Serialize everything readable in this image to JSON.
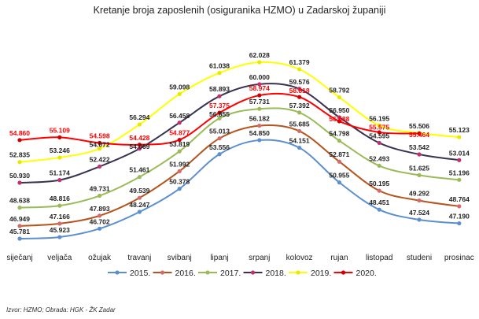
{
  "chart_data": {
    "type": "line",
    "title": "Kretanje broja zaposlenih (osiguranika HZMO) u Zadarskoj županiji",
    "categories": [
      "siječanj",
      "veljača",
      "ožujak",
      "travanj",
      "svibanj",
      "lipanj",
      "srpanj",
      "kolovoz",
      "rujan",
      "listopad",
      "studeni",
      "prosinac"
    ],
    "series": [
      {
        "name": "2015.",
        "color": "#5b8fcf",
        "marker": "#5b8fcf",
        "values": [
          45781,
          45923,
          46702,
          48247,
          50378,
          53556,
          54850,
          54151,
          50955,
          48451,
          47524,
          47190
        ]
      },
      {
        "name": "2016.",
        "color": "#b5541c",
        "marker": "#d46a6a",
        "values": [
          46949,
          47166,
          47893,
          49539,
          51992,
          55013,
          56182,
          55685,
          52871,
          50195,
          49292,
          48764
        ]
      },
      {
        "name": "2017.",
        "color": "#9bbb59",
        "marker": "#9bbb59",
        "values": [
          48638,
          48816,
          49731,
          51461,
          53819,
          56855,
          57731,
          57392,
          54798,
          52493,
          51625,
          51196
        ]
      },
      {
        "name": "2018.",
        "color": "#3b3152",
        "marker": "#c0306a",
        "values": [
          50930,
          51174,
          52422,
          54069,
          56458,
          58893,
          60000,
          59576,
          56950,
          54595,
          53542,
          53014
        ]
      },
      {
        "name": "2019.",
        "color": "#ffff00",
        "marker": "#e8e800",
        "values": [
          52835,
          53246,
          54072,
          56294,
          59098,
          61038,
          62028,
          61379,
          58792,
          56195,
          55506,
          55123
        ]
      },
      {
        "name": "2020.",
        "color": "#ff0000",
        "marker": "#cc0000",
        "label_color": "#ff0000",
        "values": [
          54860,
          55109,
          54598,
          54428,
          54877,
          57375,
          58974,
          58818,
          56588,
          55575,
          55464,
          null
        ]
      }
    ],
    "labels": {
      "2015.": [
        "45.781",
        "45.923",
        "46.702",
        "48.247",
        "50.378",
        "53.556",
        "54.850",
        "54.151",
        "50.955",
        "48.451",
        "47.524",
        "47.190"
      ],
      "2016.": [
        "46.949",
        "47.166",
        "47.893",
        "49.539",
        "51.992",
        "55.013",
        "56.182",
        "55.685",
        "52.871",
        "50.195",
        "49.292",
        "48.764"
      ],
      "2017.": [
        "48.638",
        "48.816",
        "49.731",
        "51.461",
        "53.819",
        "56.855",
        "57.731",
        "57.392",
        "54.798",
        "52.493",
        "51.625",
        "51.196"
      ],
      "2018.": [
        "50.930",
        "51.174",
        "52.422",
        "54.069",
        "56.458",
        "58.893",
        "60.000",
        "59.576",
        "56.950",
        "54.595",
        "53.542",
        "53.014"
      ],
      "2019.": [
        "52.835",
        "53.246",
        "54.072",
        "56.294",
        "59.098",
        "61.038",
        "62.028",
        "61.379",
        "58.792",
        "56.195",
        "55.506",
        "55.123"
      ],
      "2020.": [
        "54.860",
        "55.109",
        "54.598",
        "54.428",
        "54.877",
        "57.375",
        "58.974",
        "58.818",
        "56.588",
        "55.575",
        "55.464",
        null
      ]
    },
    "xlabel": "",
    "ylabel": "",
    "ylim": [
      44000,
      63000
    ],
    "grid": false,
    "legend": "bottom",
    "source": "Izvor: HZMO; Obrada: HGK - ŽK Zadar"
  }
}
